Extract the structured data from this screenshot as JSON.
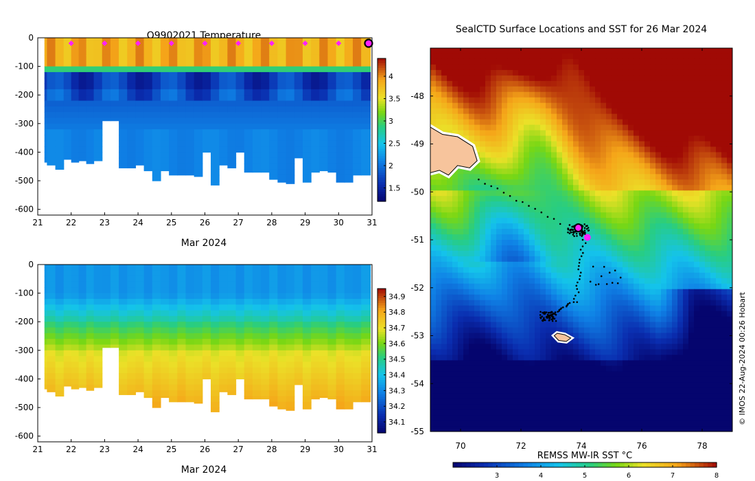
{
  "chart_data": [
    {
      "type": "heatmap",
      "title": "Q9902021  Temperature",
      "xlabel": "Mar 2024",
      "x_ticks": [
        "21",
        "22",
        "23",
        "24",
        "25",
        "26",
        "27",
        "28",
        "29",
        "30",
        "31"
      ],
      "xlim": [
        21,
        31
      ],
      "y_ticks": [
        "0",
        "-100",
        "-200",
        "-300",
        "-400",
        "-500",
        "-600"
      ],
      "ylim": [
        -620,
        0
      ],
      "colorbar_ticks": [
        "1.5",
        "2",
        "2.5",
        "3",
        "3.5",
        "4"
      ],
      "colorbar_range": [
        1.2,
        4.4
      ],
      "surface_markers_days": [
        22,
        23,
        24,
        25,
        26,
        27,
        28,
        29,
        30
      ],
      "current_marker_day": 31,
      "profiles": [
        {
          "day": 21.15,
          "max_depth": 435
        },
        {
          "day": 21.4,
          "max_depth": 445
        },
        {
          "day": 21.65,
          "max_depth": 460
        },
        {
          "day": 21.9,
          "max_depth": 425
        },
        {
          "day": 22.1,
          "max_depth": 435
        },
        {
          "day": 22.35,
          "max_depth": 430
        },
        {
          "day": 22.55,
          "max_depth": 440
        },
        {
          "day": 22.8,
          "max_depth": 430
        },
        {
          "day": 23.05,
          "max_depth": 290
        },
        {
          "day": 23.3,
          "max_depth": 290
        },
        {
          "day": 23.55,
          "max_depth": 455
        },
        {
          "day": 23.8,
          "max_depth": 455
        },
        {
          "day": 24.05,
          "max_depth": 445
        },
        {
          "day": 24.3,
          "max_depth": 465
        },
        {
          "day": 24.55,
          "max_depth": 500
        },
        {
          "day": 24.8,
          "max_depth": 465
        },
        {
          "day": 25.05,
          "max_depth": 480
        },
        {
          "day": 25.3,
          "max_depth": 480
        },
        {
          "day": 25.55,
          "max_depth": 480
        },
        {
          "day": 25.8,
          "max_depth": 485
        },
        {
          "day": 26.05,
          "max_depth": 400
        },
        {
          "day": 26.3,
          "max_depth": 515
        },
        {
          "day": 26.55,
          "max_depth": 445
        },
        {
          "day": 26.8,
          "max_depth": 455
        },
        {
          "day": 27.05,
          "max_depth": 400
        },
        {
          "day": 27.3,
          "max_depth": 470
        },
        {
          "day": 27.55,
          "max_depth": 470
        },
        {
          "day": 27.8,
          "max_depth": 470
        },
        {
          "day": 28.05,
          "max_depth": 495
        },
        {
          "day": 28.3,
          "max_depth": 505
        },
        {
          "day": 28.55,
          "max_depth": 510
        },
        {
          "day": 28.8,
          "max_depth": 420
        },
        {
          "day": 29.05,
          "max_depth": 505
        },
        {
          "day": 29.3,
          "max_depth": 470
        },
        {
          "day": 29.55,
          "max_depth": 465
        },
        {
          "day": 29.8,
          "max_depth": 470
        },
        {
          "day": 30.05,
          "max_depth": 505
        },
        {
          "day": 30.3,
          "max_depth": 505
        },
        {
          "day": 30.55,
          "max_depth": 480
        },
        {
          "day": 30.8,
          "max_depth": 480
        }
      ]
    },
    {
      "type": "heatmap",
      "title": "",
      "xlabel": "Mar 2024",
      "x_ticks": [
        "21",
        "22",
        "23",
        "24",
        "25",
        "26",
        "27",
        "28",
        "29",
        "30",
        "31"
      ],
      "xlim": [
        21,
        31
      ],
      "y_ticks": [
        "0",
        "-100",
        "-200",
        "-300",
        "-400",
        "-500",
        "-600"
      ],
      "ylim": [
        -620,
        0
      ],
      "colorbar_ticks": [
        "34.1",
        "34.2",
        "34.3",
        "34.4",
        "34.5",
        "34.6",
        "34.7",
        "34.8",
        "34.9"
      ],
      "colorbar_range": [
        34.03,
        34.95
      ]
    },
    {
      "type": "heatmap",
      "title": "SealCTD Surface Locations and SST for 26 Mar 2024",
      "xlabel": "REMSS MW-IR SST °C",
      "x_ticks": [
        "70",
        "72",
        "74",
        "76",
        "78"
      ],
      "xlim": [
        69,
        79
      ],
      "y_ticks": [
        "-48",
        "-49",
        "-50",
        "-51",
        "-52",
        "-53",
        "-54",
        "-55"
      ],
      "ylim": [
        -55,
        -47
      ],
      "colorbar_ticks": [
        "3",
        "4",
        "5",
        "6",
        "7",
        "8"
      ],
      "colorbar_range": [
        2,
        8
      ],
      "current_position": {
        "lon": 73.9,
        "lat": -50.75
      },
      "latest_position": {
        "lon": 74.2,
        "lat": -50.95
      },
      "credit": "© IMOS 22-Aug-2024 00:26 Hobart"
    }
  ]
}
